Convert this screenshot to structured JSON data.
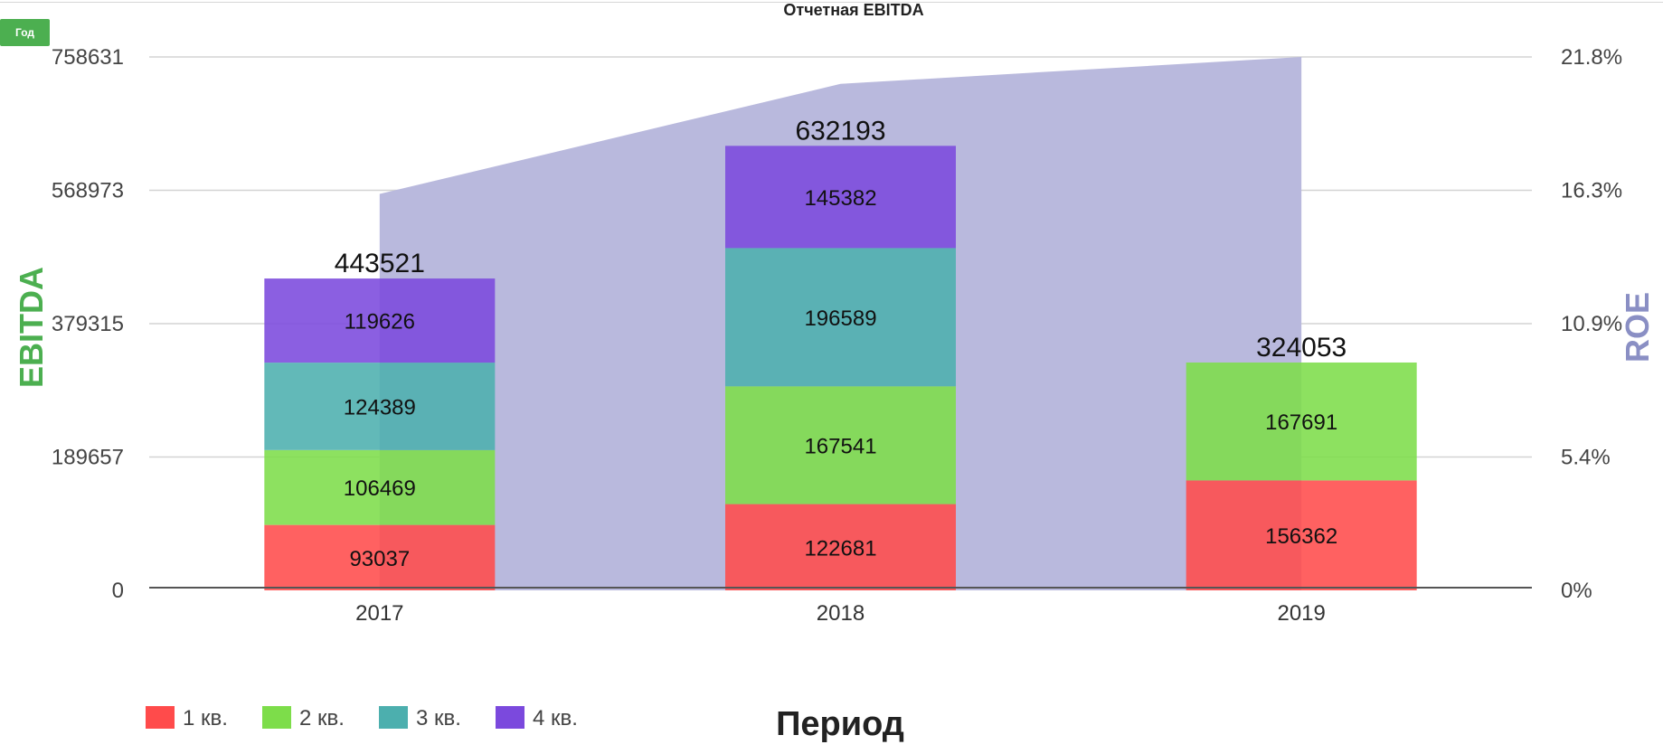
{
  "controls": {
    "period_button": "Год"
  },
  "chart_data": {
    "type": "bar",
    "stacked": true,
    "title": "Отчетная EBITDA",
    "xlabel": "Период",
    "ylabel": "EBITDA",
    "y2label": "ROE",
    "categories": [
      "2017",
      "2018",
      "2019"
    ],
    "series": [
      {
        "name": "1 кв.",
        "color": "#ff4b4b",
        "values": [
          93037,
          122681,
          156362
        ]
      },
      {
        "name": "2 кв.",
        "color": "#7ddd4a",
        "values": [
          106469,
          167541,
          167691
        ]
      },
      {
        "name": "3 кв.",
        "color": "#4cafae",
        "values": [
          124389,
          196589,
          null
        ]
      },
      {
        "name": "4 кв.",
        "color": "#7b49dd",
        "values": [
          119626,
          145382,
          null
        ]
      }
    ],
    "totals": [
      443521,
      632193,
      324053
    ],
    "ylim": [
      0,
      758631
    ],
    "yticks": [
      "0",
      "189657",
      "379315",
      "568973",
      "758631"
    ],
    "y2lim": [
      0,
      21.8
    ],
    "y2ticks": [
      "0%",
      "5.4%",
      "10.9%",
      "16.3%",
      "21.8%"
    ],
    "roe_area": {
      "color": "#b9b9dd",
      "x": [
        "2017",
        "2018",
        "2019"
      ],
      "values": [
        16.2,
        20.7,
        21.8
      ]
    },
    "grid": true,
    "legend": "bottom-left",
    "colors": {
      "ebitda_axis": "#4caf50",
      "roe_axis": "#8a8fc4"
    }
  }
}
